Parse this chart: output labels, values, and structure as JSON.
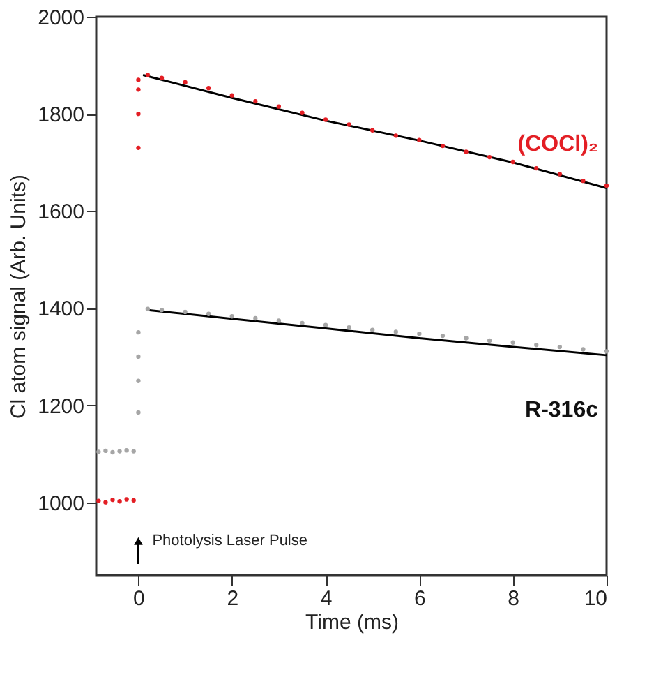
{
  "chart_data": {
    "type": "scatter",
    "xlabel": "Time (ms)",
    "ylabel": "Cl atom signal (Arb. Units)",
    "xlim": [
      -0.9,
      10
    ],
    "ylim": [
      850,
      2000
    ],
    "xticks": [
      0,
      2,
      4,
      6,
      8,
      10
    ],
    "yticks": [
      1000,
      1200,
      1400,
      1600,
      1800,
      2000
    ],
    "grid": false,
    "marker": "circle",
    "annotations": [
      {
        "text": "Photolysis Laser Pulse",
        "x": 0,
        "y": 920
      }
    ],
    "series": [
      {
        "name": "(COCl)₂",
        "color": "#e31e24",
        "x": [
          -0.85,
          -0.7,
          -0.55,
          -0.4,
          -0.25,
          -0.1,
          0,
          0,
          0,
          0,
          0.2,
          0.5,
          1,
          1.5,
          2,
          2.5,
          3,
          3.5,
          4,
          4.5,
          5,
          5.5,
          6,
          6.5,
          7,
          7.5,
          8,
          8.5,
          9,
          9.5,
          10
        ],
        "values": [
          1003,
          1000,
          1005,
          1002,
          1006,
          1004,
          1730,
          1800,
          1850,
          1870,
          1880,
          1874,
          1865,
          1853,
          1838,
          1826,
          1815,
          1802,
          1788,
          1778,
          1766,
          1755,
          1746,
          1734,
          1722,
          1711,
          1701,
          1688,
          1676,
          1662,
          1652
        ]
      },
      {
        "name": "R-316c",
        "color": "#a6a6a6",
        "x": [
          -0.85,
          -0.7,
          -0.55,
          -0.4,
          -0.25,
          -0.1,
          0,
          0,
          0,
          0,
          0.2,
          0.5,
          1,
          1.5,
          2,
          2.5,
          3,
          3.5,
          4,
          4.5,
          5,
          5.5,
          6,
          6.5,
          7,
          7.5,
          8,
          8.5,
          9,
          9.5,
          10
        ],
        "values": [
          1104,
          1106,
          1103,
          1105,
          1107,
          1105,
          1185,
          1250,
          1300,
          1350,
          1398,
          1396,
          1392,
          1388,
          1383,
          1379,
          1374,
          1369,
          1365,
          1360,
          1355,
          1351,
          1347,
          1343,
          1338,
          1333,
          1329,
          1324,
          1320,
          1315,
          1311
        ]
      },
      {
        "type": "line",
        "marker": "none",
        "line_style": "solid",
        "color": "#000000",
        "x": [
          0.1,
          2,
          4,
          6,
          8,
          10
        ],
        "values": [
          1880,
          1833,
          1786,
          1745,
          1700,
          1647
        ]
      },
      {
        "type": "line",
        "marker": "none",
        "line_style": "solid",
        "color": "#000000",
        "x": [
          0.2,
          2,
          4,
          6,
          8,
          10
        ],
        "values": [
          1396,
          1378,
          1358,
          1338,
          1320,
          1303
        ]
      }
    ]
  }
}
